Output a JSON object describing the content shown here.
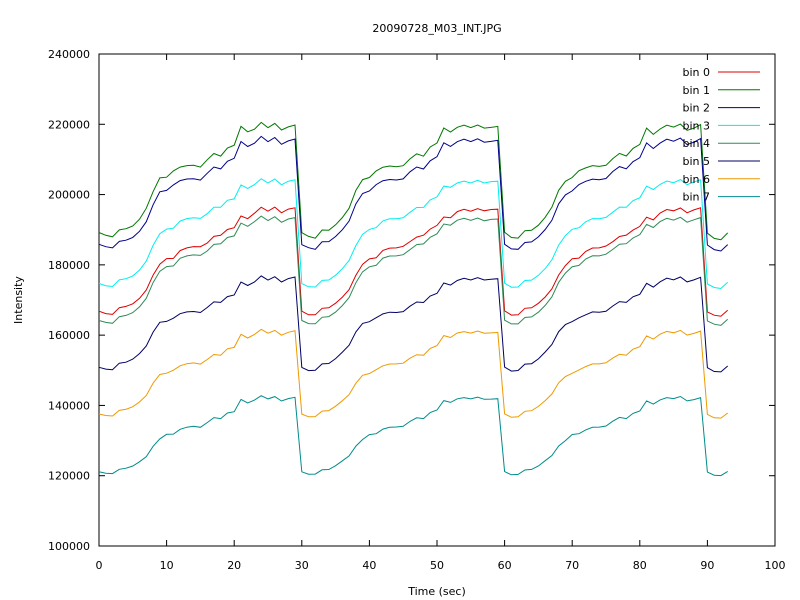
{
  "chart_data": {
    "type": "line",
    "title": "20090728_M03_INT.JPG",
    "xlabel": "Time (sec)",
    "ylabel": "Intensity",
    "xlim": [
      0,
      100
    ],
    "ylim": [
      100000,
      240000
    ],
    "x_ticks": [
      0,
      10,
      20,
      30,
      40,
      50,
      60,
      70,
      80,
      90,
      100
    ],
    "y_ticks": [
      100000,
      120000,
      140000,
      160000,
      180000,
      200000,
      220000,
      240000
    ],
    "grid": false,
    "legend_position": "top-right",
    "x": [
      0,
      1,
      2,
      3,
      4,
      5,
      6,
      7,
      8,
      9,
      10,
      11,
      12,
      13,
      14,
      15,
      16,
      17,
      18,
      19,
      20,
      21,
      22,
      23,
      24,
      25,
      26,
      27,
      28,
      29,
      30,
      31,
      32,
      33,
      34,
      35,
      36,
      37,
      38,
      39,
      40,
      41,
      42,
      43,
      44,
      45,
      46,
      47,
      48,
      49,
      50,
      51,
      52,
      53,
      54,
      55,
      56,
      57,
      58,
      59,
      60,
      61,
      62,
      63,
      64,
      65,
      66,
      67,
      68,
      69,
      70,
      71,
      72,
      73,
      74,
      75,
      76,
      77,
      78,
      79,
      80,
      81,
      82,
      83,
      84,
      85,
      86,
      87,
      88,
      89,
      90,
      91,
      92,
      93
    ],
    "series": [
      {
        "name": "bin 0",
        "color": "#dd0000",
        "values": [
          166807,
          166136,
          165906,
          167800,
          168187,
          168914,
          170496,
          172851,
          177072,
          180187,
          181779,
          181834,
          184047,
          184813,
          185200,
          185171,
          186190,
          188096,
          188409,
          190049,
          190584,
          193915,
          193143,
          194686,
          196418,
          195282,
          196421,
          194804,
          195852,
          196232,
          166804,
          165794,
          165799,
          167649,
          167783,
          169090,
          170817,
          172967,
          177017,
          180168,
          181707,
          182007,
          184104,
          184767,
          184817,
          185278,
          186611,
          187905,
          188445,
          190185,
          191216,
          193630,
          193419,
          195167,
          195806,
          195271,
          196007,
          195386,
          195741,
          195832,
          166917,
          165713,
          165779,
          167626,
          167781,
          169048,
          170846,
          173174,
          177127,
          179794,
          181758,
          181927,
          183822,
          184796,
          184811,
          185365,
          186601,
          188061,
          188473,
          189889,
          190951,
          193575,
          192786,
          194742,
          195747,
          195369,
          196183,
          194821,
          195630,
          196224,
          166609,
          165669,
          165393,
          167108
        ]
      },
      {
        "name": "bin 1",
        "color": "#007700",
        "values": [
          189216,
          188412,
          187990,
          189936,
          190287,
          191056,
          193022,
          196127,
          200825,
          204733,
          204932,
          206725,
          207822,
          208253,
          208316,
          207812,
          209887,
          211693,
          210939,
          213264,
          214055,
          219426,
          217858,
          218600,
          220542,
          219034,
          220244,
          218374,
          219262,
          219804,
          189144,
          188111,
          187578,
          189924,
          189842,
          191389,
          193468,
          196112,
          201224,
          204271,
          204847,
          206737,
          207790,
          208121,
          207909,
          208212,
          210145,
          211599,
          210929,
          213547,
          214671,
          218936,
          217803,
          219143,
          219738,
          219049,
          219807,
          218911,
          219111,
          219409,
          189259,
          187782,
          187604,
          189723,
          189847,
          191288,
          193542,
          196402,
          201219,
          203784,
          204869,
          206779,
          207583,
          208233,
          208013,
          208336,
          210225,
          211703,
          210985,
          213147,
          214284,
          218916,
          217110,
          218665,
          219745,
          219195,
          220067,
          218285,
          218893,
          219919,
          189019,
          187533,
          187145,
          189086
        ]
      },
      {
        "name": "bin 2",
        "color": "#00008b",
        "values": [
          185844,
          185166,
          184813,
          186671,
          187016,
          187822,
          189564,
          192294,
          197076,
          200793,
          201195,
          202756,
          203989,
          204418,
          204479,
          204122,
          206064,
          207858,
          207297,
          209456,
          210316,
          215107,
          213688,
          214611,
          216549,
          215037,
          216235,
          214318,
          215260,
          215808,
          185730,
          184880,
          184424,
          186573,
          186617,
          188067,
          190008,
          192476,
          197381,
          200301,
          201021,
          202826,
          203951,
          204287,
          204152,
          204460,
          206485,
          207837,
          207284,
          209616,
          210767,
          214724,
          213697,
          215054,
          215753,
          215071,
          215856,
          214914,
          215138,
          215452,
          185850,
          184533,
          184415,
          186360,
          186544,
          187964,
          190066,
          192690,
          197381,
          199910,
          201032,
          202855,
          203766,
          204392,
          204231,
          204578,
          206560,
          207950,
          207342,
          209352,
          210496,
          214694,
          213099,
          214647,
          215752,
          215181,
          216066,
          214226,
          214890,
          215923,
          185646,
          184334,
          183953,
          185773
        ]
      },
      {
        "name": "bin 3",
        "color": "#00eeee",
        "values": [
          174683,
          174082,
          173843,
          175716,
          176068,
          176863,
          178549,
          181071,
          185528,
          188858,
          190188,
          190444,
          192450,
          193167,
          193414,
          193220,
          194567,
          196397,
          196404,
          198384,
          198770,
          202755,
          201767,
          202826,
          204528,
          203289,
          204433,
          202783,
          203797,
          204215,
          174656,
          173747,
          173709,
          175572,
          175689,
          177056,
          178902,
          181247,
          185520,
          188686,
          190098,
          190605,
          192496,
          193117,
          193115,
          193386,
          194952,
          196315,
          196351,
          198475,
          199335,
          202418,
          202082,
          203283,
          203844,
          203294,
          204071,
          203304,
          203692,
          203804,
          174777,
          173647,
          173690,
          175544,
          175674,
          177019,
          178922,
          181447,
          185616,
          188321,
          190118,
          190583,
          192247,
          193161,
          193135,
          193497,
          194987,
          196442,
          196383,
          198246,
          199092,
          202400,
          201433,
          202887,
          203853,
          203384,
          204256,
          202803,
          203576,
          204208,
          174555,
          173559,
          173282,
          175054
        ]
      },
      {
        "name": "bin 4",
        "color": "#2e8b57",
        "values": [
          164175,
          163614,
          163377,
          165256,
          165626,
          166410,
          168059,
          170510,
          174957,
          178160,
          179502,
          179706,
          181863,
          182547,
          182844,
          182704,
          183950,
          185818,
          185992,
          187792,
          188232,
          191886,
          190969,
          192310,
          193862,
          192632,
          193692,
          192109,
          193044,
          193453,
          164154,
          163284,
          163223,
          165073,
          165265,
          166554,
          168434,
          170697,
          174921,
          178016,
          179456,
          179869,
          181935,
          182508,
          182539,
          182900,
          184353,
          185752,
          185976,
          187835,
          188839,
          191617,
          191278,
          192718,
          193246,
          192643,
          193330,
          192540,
          192921,
          193055,
          164261,
          163189,
          163193,
          165024,
          165180,
          166542,
          168457,
          170897,
          175027,
          177650,
          179478,
          179859,
          181665,
          182566,
          182540,
          183030,
          184387,
          185881,
          186023,
          187632,
          188605,
          191516,
          190619,
          192311,
          193243,
          192734,
          193541,
          192125,
          192824,
          193444,
          164056,
          163118,
          162785,
          164548
        ]
      },
      {
        "name": "bin 5",
        "color": "#000066",
        "values": [
          150857,
          150330,
          150180,
          152022,
          152289,
          153177,
          154788,
          156898,
          160878,
          163657,
          163904,
          164823,
          166088,
          166600,
          166733,
          166443,
          167867,
          169465,
          169311,
          170975,
          171431,
          175117,
          174121,
          175116,
          176849,
          175671,
          176634,
          175111,
          176080,
          176546,
          150821,
          149918,
          149992,
          151812,
          151923,
          153315,
          155168,
          157138,
          160930,
          163354,
          163818,
          164957,
          166053,
          166526,
          166444,
          166685,
          168234,
          169431,
          169282,
          171132,
          171883,
          174851,
          174242,
          175539,
          176186,
          175685,
          176346,
          175686,
          175879,
          176066,
          150906,
          149780,
          149943,
          151757,
          151880,
          153248,
          155202,
          157331,
          160995,
          163003,
          163858,
          164941,
          165796,
          166608,
          166495,
          166777,
          168301,
          169541,
          169320,
          170900,
          171634,
          174763,
          173674,
          175166,
          176204,
          175758,
          176541,
          175155,
          175708,
          176460,
          150736,
          149642,
          149541,
          151231
        ]
      },
      {
        "name": "bin 6",
        "color": "#ee9a00",
        "values": [
          137549,
          137136,
          137002,
          138599,
          138903,
          139643,
          141011,
          142818,
          146342,
          148815,
          149181,
          150017,
          151267,
          151866,
          152103,
          151760,
          153055,
          154478,
          154298,
          156113,
          156498,
          160233,
          159184,
          160209,
          161653,
          160564,
          161362,
          159983,
          160805,
          161227,
          137521,
          136757,
          136821,
          138383,
          138540,
          139793,
          141339,
          143077,
          146331,
          148582,
          149084,
          150165,
          151281,
          151787,
          151809,
          152025,
          153426,
          154424,
          154298,
          156228,
          157037,
          159858,
          159333,
          160606,
          161015,
          160568,
          161169,
          160561,
          160634,
          160785,
          137589,
          136622,
          136778,
          138324,
          138512,
          139726,
          141375,
          143244,
          146436,
          148205,
          149144,
          150103,
          151053,
          151815,
          151817,
          152139,
          153470,
          154536,
          154304,
          156000,
          156717,
          159788,
          158862,
          160277,
          161051,
          160658,
          161351,
          160002,
          160505,
          161143,
          137437,
          136480,
          136400,
          137856
        ]
      },
      {
        "name": "bin 7",
        "color": "#008b8b",
        "values": [
          121151,
          120723,
          120594,
          121835,
          122126,
          122753,
          123987,
          125409,
          128373,
          130466,
          131780,
          131850,
          133202,
          133817,
          134081,
          133786,
          135107,
          136524,
          136248,
          137847,
          138227,
          141710,
          140695,
          141524,
          142776,
          141856,
          142512,
          141271,
          141946,
          142317,
          121123,
          120421,
          120456,
          121673,
          121781,
          122854,
          124246,
          125627,
          128416,
          130293,
          131689,
          131943,
          133266,
          133773,
          133852,
          134063,
          135450,
          136469,
          136250,
          137977,
          138708,
          141365,
          140875,
          141873,
          142217,
          141867,
          142379,
          141758,
          141796,
          141903,
          121178,
          120274,
          120382,
          121614,
          121786,
          122769,
          124266,
          125748,
          128469,
          129988,
          131726,
          131959,
          133026,
          133784,
          133829,
          134155,
          135509,
          136592,
          136261,
          137733,
          138402,
          141282,
          140387,
          141584,
          142238,
          141951,
          142543,
          141289,
          141662,
          142241,
          121021,
          120150,
          120032,
          121225
        ]
      }
    ]
  }
}
